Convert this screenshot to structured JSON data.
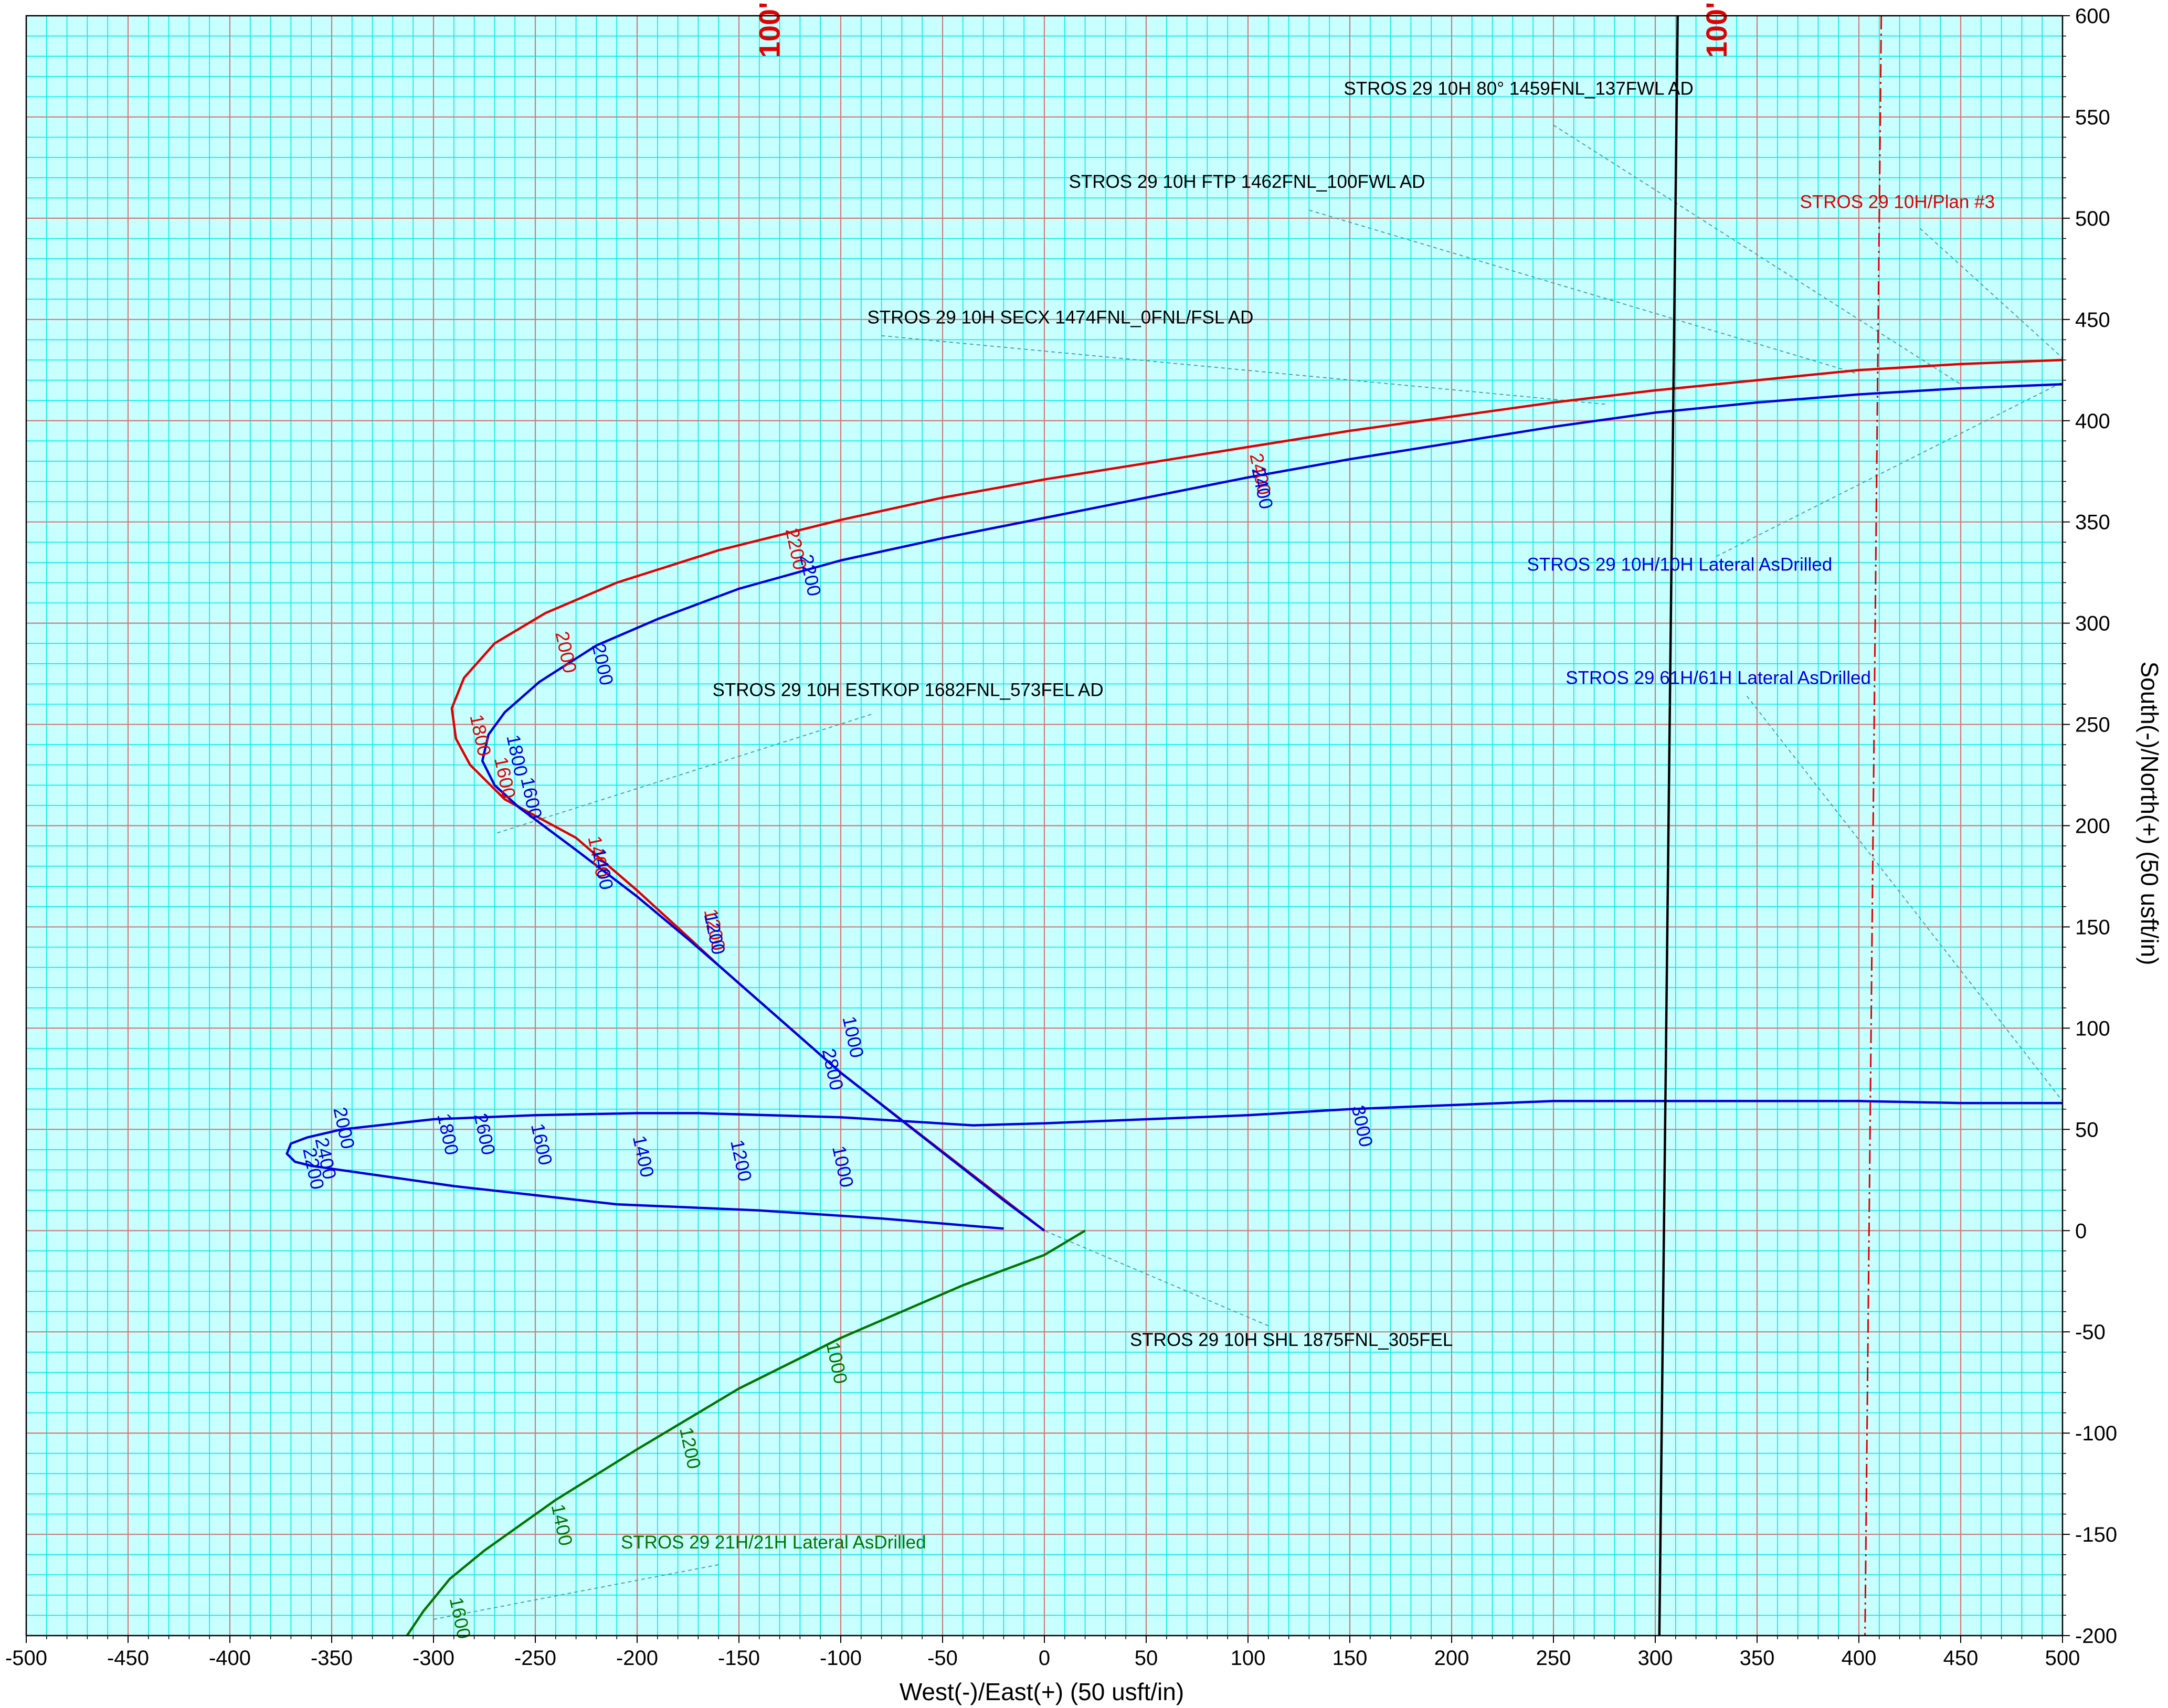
{
  "chart_data": {
    "type": "line",
    "xlabel": "West(-)/East(+) (50 usft/in)",
    "ylabel": "South(-)/North(+) (50 usft/in)",
    "xlim": [
      -500,
      500
    ],
    "ylim": [
      -200,
      600
    ],
    "x_ticks": [
      -500,
      -450,
      -400,
      -350,
      -300,
      -250,
      -200,
      -150,
      -100,
      -50,
      0,
      50,
      100,
      150,
      200,
      250,
      300,
      350,
      400,
      450,
      500
    ],
    "y_ticks": [
      -200,
      -150,
      -100,
      -50,
      0,
      50,
      100,
      150,
      200,
      250,
      300,
      350,
      400,
      450,
      500,
      550,
      600
    ],
    "grid": true,
    "minor_grid_step": 10,
    "colors": {
      "background": "#c8ffff",
      "minor_grid": "#00e8e8",
      "major_grid": "#d07a7a",
      "plan": "#e00000",
      "blue": "#0000dd",
      "green": "#007700",
      "black": "#000000",
      "leader": "#4aa6a6"
    },
    "series": [
      {
        "name": "STROS 29 10H/Plan #3",
        "color": "#e00000",
        "style": "solid",
        "points": [
          [
            0,
            0
          ],
          [
            -100,
            78
          ],
          [
            -160,
            131
          ],
          [
            -175,
            145
          ],
          [
            -200,
            168
          ],
          [
            -230,
            194
          ],
          [
            -265,
            213
          ],
          [
            -282,
            230
          ],
          [
            -289,
            243
          ],
          [
            -291,
            258
          ],
          [
            -285,
            273
          ],
          [
            -270,
            290
          ],
          [
            -245,
            305
          ],
          [
            -210,
            320
          ],
          [
            -160,
            336
          ],
          [
            -100,
            351
          ],
          [
            -50,
            362
          ],
          [
            0,
            371
          ],
          [
            50,
            379
          ],
          [
            100,
            387
          ],
          [
            150,
            395
          ],
          [
            200,
            402
          ],
          [
            250,
            409
          ],
          [
            300,
            415
          ],
          [
            350,
            420
          ],
          [
            400,
            425
          ],
          [
            450,
            428
          ],
          [
            500,
            430
          ]
        ],
        "depth_labels": [
          {
            "text": "1200",
            "x": -165,
            "y": 148
          },
          {
            "text": "1400",
            "x": -222,
            "y": 184
          },
          {
            "text": "1600",
            "x": -268,
            "y": 223
          },
          {
            "text": "1800",
            "x": -280,
            "y": 244
          },
          {
            "text": "2000",
            "x": -238,
            "y": 285
          },
          {
            "text": "2200",
            "x": -125,
            "y": 336
          },
          {
            "text": "2400",
            "x": 103,
            "y": 373
          }
        ]
      },
      {
        "name": "STROS 29 10H/10H Lateral AsDrilled",
        "color": "#0000dd",
        "style": "solid",
        "points": [
          [
            0,
            0
          ],
          [
            -20,
            15
          ],
          [
            -100,
            78
          ],
          [
            -160,
            131
          ],
          [
            -175,
            144
          ],
          [
            -200,
            165
          ],
          [
            -230,
            188
          ],
          [
            -258,
            209
          ],
          [
            -270,
            220
          ],
          [
            -276,
            232
          ],
          [
            -273,
            245
          ],
          [
            -265,
            256
          ],
          [
            -248,
            271
          ],
          [
            -220,
            289
          ],
          [
            -190,
            302
          ],
          [
            -150,
            317
          ],
          [
            -100,
            331
          ],
          [
            -50,
            342
          ],
          [
            0,
            352
          ],
          [
            50,
            362
          ],
          [
            100,
            372
          ],
          [
            150,
            381
          ],
          [
            200,
            389
          ],
          [
            250,
            397
          ],
          [
            300,
            404
          ],
          [
            350,
            409
          ],
          [
            400,
            413
          ],
          [
            450,
            416
          ],
          [
            500,
            418
          ]
        ],
        "depth_labels": [
          {
            "text": "1000",
            "x": -97,
            "y": 95
          },
          {
            "text": "1200",
            "x": -165,
            "y": 146
          },
          {
            "text": "1400",
            "x": -220,
            "y": 178
          },
          {
            "text": "1600",
            "x": -255,
            "y": 213
          },
          {
            "text": "1800",
            "x": -262,
            "y": 234
          },
          {
            "text": "2000",
            "x": -220,
            "y": 279
          },
          {
            "text": "2200",
            "x": -118,
            "y": 323
          },
          {
            "text": "2400",
            "x": 104,
            "y": 366
          }
        ]
      },
      {
        "name": "STROS 29 61H/61H Lateral AsDrilled",
        "color": "#0000dd",
        "style": "solid",
        "points": [
          [
            -20,
            1
          ],
          [
            -80,
            6
          ],
          [
            -140,
            10
          ],
          [
            -210,
            13
          ],
          [
            -290,
            22
          ],
          [
            -360,
            32
          ],
          [
            -368,
            34
          ],
          [
            -372,
            38
          ],
          [
            -370,
            43
          ],
          [
            -362,
            46
          ],
          [
            -345,
            50
          ],
          [
            -300,
            55
          ],
          [
            -250,
            57
          ],
          [
            -200,
            58
          ],
          [
            -170,
            58
          ],
          [
            -100,
            56
          ],
          [
            -35,
            52
          ],
          [
            0,
            53
          ],
          [
            50,
            55
          ],
          [
            100,
            57
          ],
          [
            150,
            60
          ],
          [
            200,
            62
          ],
          [
            250,
            64
          ],
          [
            300,
            64
          ],
          [
            350,
            64
          ],
          [
            400,
            64
          ],
          [
            450,
            63
          ],
          [
            500,
            63
          ]
        ],
        "depth_labels": [
          {
            "text": "1000",
            "x": -102,
            "y": 31
          },
          {
            "text": "1200",
            "x": -152,
            "y": 34
          },
          {
            "text": "1400",
            "x": -200,
            "y": 36
          },
          {
            "text": "1600",
            "x": -250,
            "y": 42
          },
          {
            "text": "1800",
            "x": -296,
            "y": 47
          },
          {
            "text": "2000",
            "x": -347,
            "y": 50
          },
          {
            "text": "2200",
            "x": -362,
            "y": 30
          },
          {
            "text": "2400",
            "x": -356,
            "y": 35
          },
          {
            "text": "2600",
            "x": -278,
            "y": 47
          },
          {
            "text": "2800",
            "x": -107,
            "y": 79
          },
          {
            "text": "3000",
            "x": 153,
            "y": 51
          }
        ]
      },
      {
        "name": "STROS 29 21H/21H Lateral AsDrilled",
        "color": "#007700",
        "style": "solid",
        "points": [
          [
            20,
            0
          ],
          [
            0,
            -12
          ],
          [
            -40,
            -27
          ],
          [
            -100,
            -53
          ],
          [
            -150,
            -78
          ],
          [
            -200,
            -108
          ],
          [
            -240,
            -133
          ],
          [
            -275,
            -158
          ],
          [
            -292,
            -172
          ],
          [
            -305,
            -188
          ],
          [
            -313,
            -200
          ]
        ],
        "depth_labels": [
          {
            "text": "1000",
            "x": -105,
            "y": -66
          },
          {
            "text": "1200",
            "x": -177,
            "y": -108
          },
          {
            "text": "1400",
            "x": -240,
            "y": -146
          },
          {
            "text": "1600",
            "x": -290,
            "y": -192
          }
        ]
      },
      {
        "name": "",
        "color": "#000000",
        "style": "solid",
        "points": [
          [
            311,
            600
          ],
          [
            302,
            -200
          ]
        ]
      },
      {
        "name": "",
        "color": "#e00000",
        "style": "dashdot",
        "points": [
          [
            411,
            600
          ],
          [
            403,
            -200
          ]
        ]
      }
    ],
    "annotations": [
      {
        "text": "STROS 29 10H 80° 1459FNL_137FWL AD",
        "color": "#000000",
        "x": 147,
        "y": 561,
        "leader": [
          [
            250,
            546
          ],
          [
            450,
            418
          ]
        ]
      },
      {
        "text": "STROS 29 10H FTP 1462FNL_100FWL AD",
        "color": "#000000",
        "x": 12,
        "y": 515,
        "leader": [
          [
            130,
            504
          ],
          [
            400,
            423
          ]
        ]
      },
      {
        "text": "STROS 29 10H/Plan #3",
        "color": "#e00000",
        "x": 371,
        "y": 505,
        "leader": [
          [
            430,
            495
          ],
          [
            500,
            431
          ]
        ]
      },
      {
        "text": "STROS 29 10H SECX 1474FNL_0FNL/FSL AD",
        "color": "#000000",
        "x": -87,
        "y": 448,
        "leader": [
          [
            -80,
            442
          ],
          [
            277,
            408
          ]
        ]
      },
      {
        "text": "STROS 29 10H/10H Lateral AsDrilled",
        "color": "#0000dd",
        "x": 237,
        "y": 326,
        "leader": [
          [
            330,
            333
          ],
          [
            500,
            419
          ]
        ]
      },
      {
        "text": "STROS 29 61H/61H Lateral AsDrilled",
        "color": "#0000dd",
        "x": 256,
        "y": 270,
        "leader": [
          [
            345,
            264
          ],
          [
            500,
            64
          ]
        ]
      },
      {
        "text": "STROS 29 10H ESTKOP 1682FNL_573FEL AD",
        "color": "#000000",
        "x": -163,
        "y": 264,
        "leader": [
          [
            -85,
            255
          ],
          [
            -270,
            196
          ]
        ]
      },
      {
        "text": "STROS 29 10H SHL 1875FNL_305FEL",
        "color": "#000000",
        "x": 42,
        "y": -57,
        "leader": [
          [
            110,
            -47
          ],
          [
            0,
            0
          ]
        ]
      },
      {
        "text": "STROS 29 21H/21H Lateral AsDrilled",
        "color": "#007700",
        "x": -208,
        "y": -157,
        "leader": [
          [
            -160,
            -165
          ],
          [
            -300,
            -192
          ]
        ]
      }
    ],
    "hundred_markers": [
      {
        "text": "100'",
        "x": -130,
        "y": 593
      },
      {
        "text": "100'",
        "x": 335,
        "y": 593
      }
    ]
  }
}
